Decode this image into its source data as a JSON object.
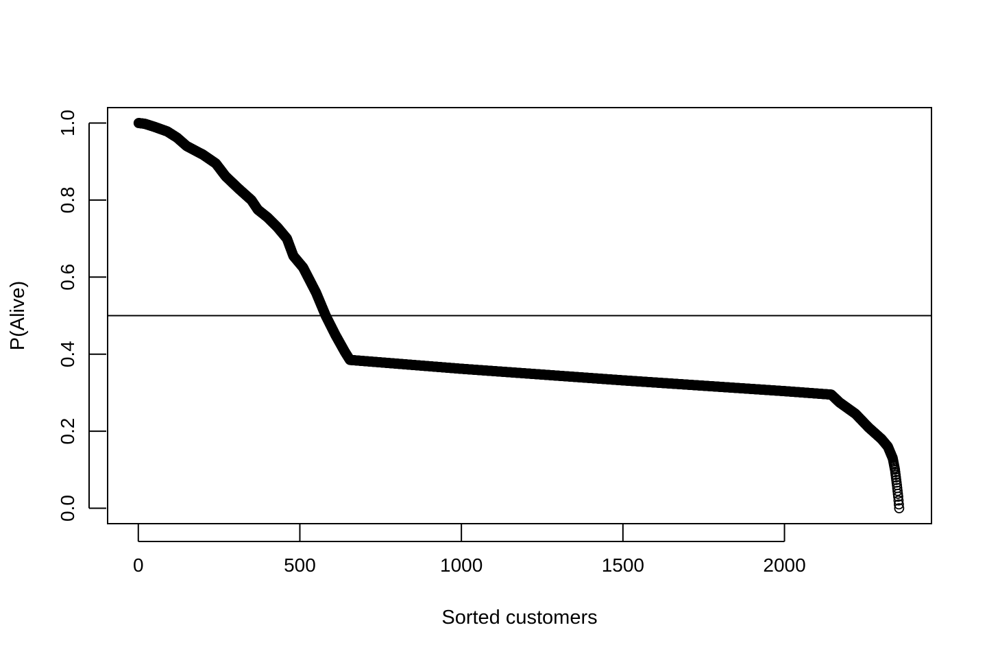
{
  "chart_data": {
    "type": "scatter",
    "title": "",
    "xlabel": "Sorted customers",
    "ylabel": "P(Alive)",
    "xlim": [
      -95,
      2455
    ],
    "ylim": [
      -0.04,
      1.04
    ],
    "x_ticks": [
      0,
      500,
      1000,
      1500,
      2000
    ],
    "x_tick_labels": [
      "0",
      "500",
      "1000",
      "1500",
      "2000"
    ],
    "y_ticks": [
      0.0,
      0.2,
      0.4,
      0.6,
      0.8,
      1.0
    ],
    "y_tick_labels": [
      "0.0",
      "0.2",
      "0.4",
      "0.6",
      "0.8",
      "1.0"
    ],
    "grid": false,
    "legend": "none",
    "marker": "open-circle",
    "point_color": "#000000",
    "reference_line": {
      "orientation": "horizontal",
      "y": 0.5,
      "color": "#000000"
    },
    "n_points": 2355,
    "curve_knots": [
      [
        1,
        1.0
      ],
      [
        20,
        0.998
      ],
      [
        50,
        0.99
      ],
      [
        90,
        0.978
      ],
      [
        120,
        0.962
      ],
      [
        150,
        0.94
      ],
      [
        200,
        0.918
      ],
      [
        240,
        0.895
      ],
      [
        270,
        0.862
      ],
      [
        310,
        0.83
      ],
      [
        350,
        0.8
      ],
      [
        370,
        0.775
      ],
      [
        400,
        0.755
      ],
      [
        430,
        0.73
      ],
      [
        460,
        0.7
      ],
      [
        480,
        0.655
      ],
      [
        510,
        0.625
      ],
      [
        550,
        0.56
      ],
      [
        580,
        0.5
      ],
      [
        610,
        0.45
      ],
      [
        640,
        0.405
      ],
      [
        655,
        0.385
      ],
      [
        700,
        0.382
      ],
      [
        1000,
        0.362
      ],
      [
        1500,
        0.332
      ],
      [
        2000,
        0.304
      ],
      [
        2145,
        0.295
      ],
      [
        2170,
        0.275
      ],
      [
        2220,
        0.245
      ],
      [
        2260,
        0.21
      ],
      [
        2300,
        0.18
      ],
      [
        2320,
        0.16
      ],
      [
        2335,
        0.13
      ],
      [
        2342,
        0.1
      ],
      [
        2348,
        0.06
      ],
      [
        2352,
        0.03
      ],
      [
        2355,
        0.0
      ]
    ]
  }
}
